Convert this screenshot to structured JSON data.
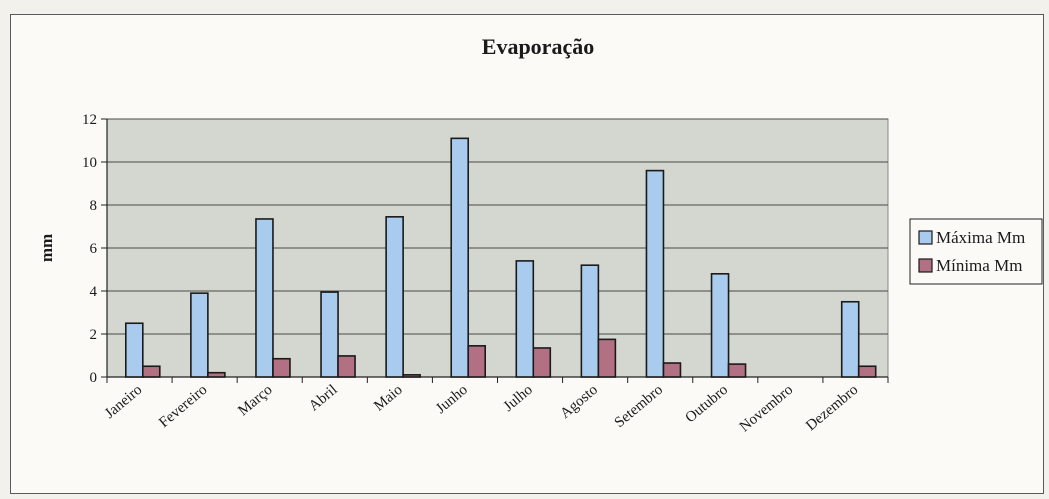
{
  "chart_data": {
    "type": "bar",
    "title": "Evaporação",
    "xlabel": "",
    "ylabel": "mm",
    "ylim": [
      0,
      12
    ],
    "yticks": [
      0,
      2,
      4,
      6,
      8,
      10,
      12
    ],
    "grid": true,
    "legend_position": "right",
    "categories": [
      "Janeiro",
      "Fevereiro",
      "Março",
      "Abril",
      "Maio",
      "Junho",
      "Julho",
      "Agosto",
      "Setembro",
      "Outubro",
      "Novembro",
      "Dezembro"
    ],
    "series": [
      {
        "name": "Máxima Mm",
        "color": "#a9cbed",
        "values": [
          2.5,
          3.9,
          7.35,
          3.95,
          7.45,
          11.1,
          5.4,
          5.2,
          9.6,
          4.8,
          0,
          3.5
        ]
      },
      {
        "name": "Mínima Mm",
        "color": "#b27083",
        "values": [
          0.5,
          0.2,
          0.85,
          0.98,
          0.1,
          1.45,
          1.35,
          1.75,
          0.65,
          0.6,
          0,
          0.5
        ]
      }
    ],
    "plot_background": "#d4d7cf"
  }
}
